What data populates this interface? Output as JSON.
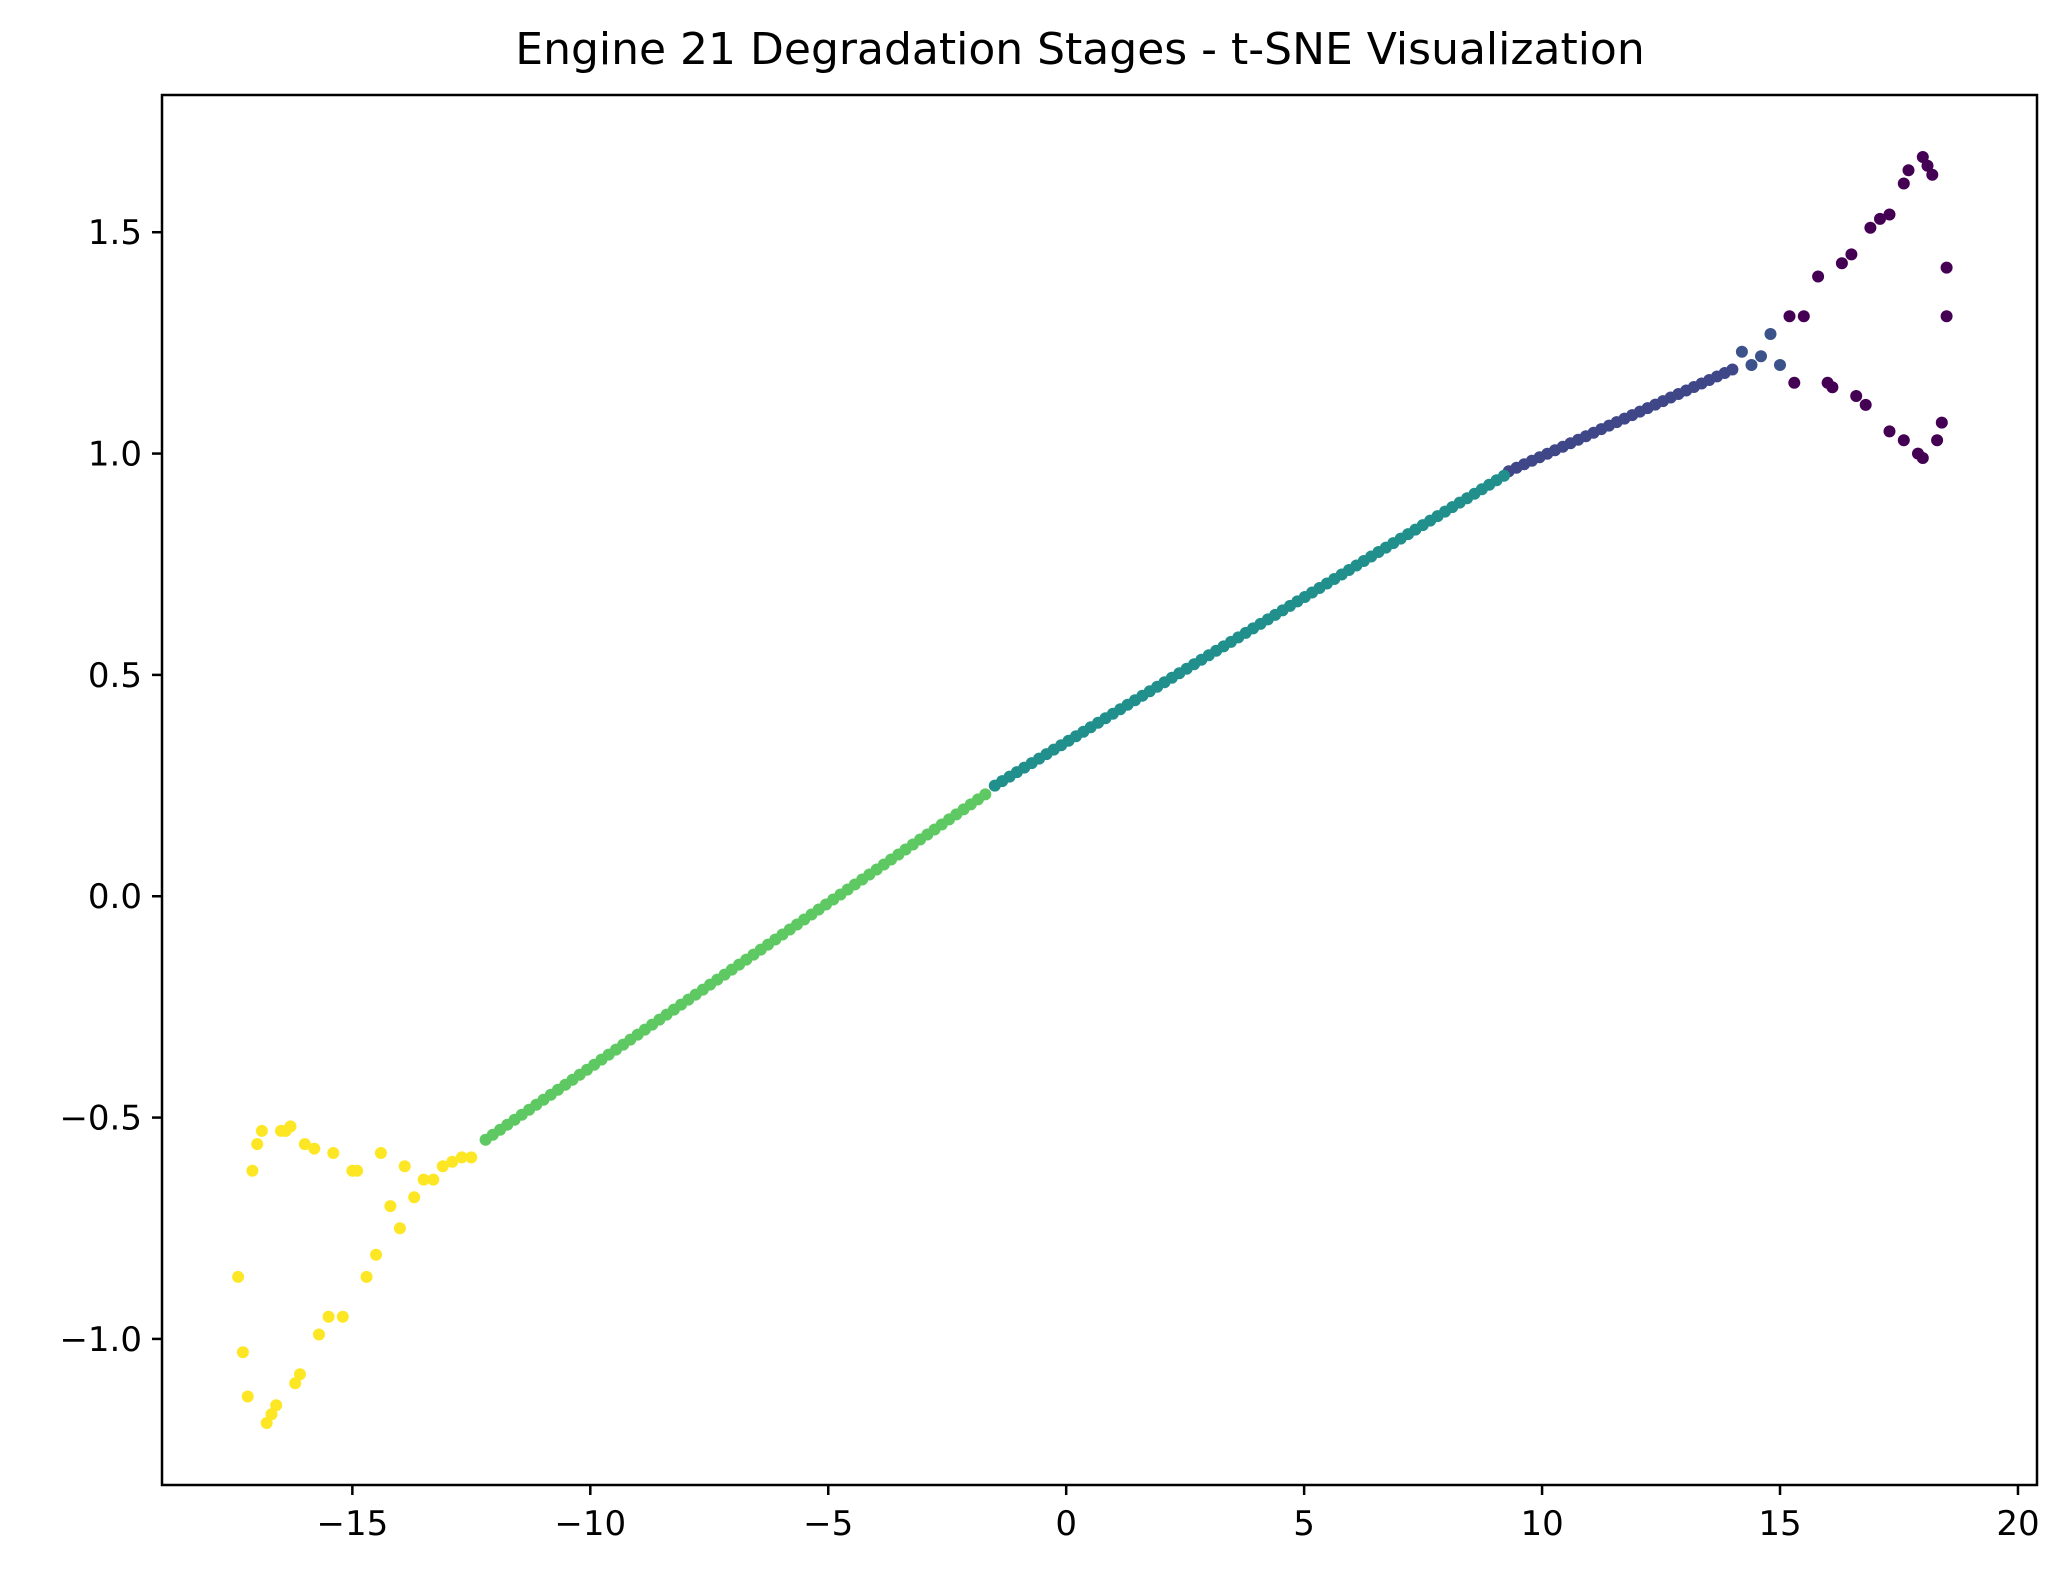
{
  "chart_data": {
    "type": "scatter",
    "title": "Engine 21 Degradation Stages - t-SNE Visualization",
    "xlabel": "",
    "ylabel": "",
    "xlim": [
      -19.0,
      20.4
    ],
    "ylim": [
      -1.33,
      1.81
    ],
    "x_ticks": [
      -15,
      -10,
      -5,
      0,
      5,
      10,
      15,
      20
    ],
    "x_tick_labels": [
      "−15",
      "−10",
      "−5",
      "0",
      "5",
      "10",
      "15",
      "20"
    ],
    "y_ticks": [
      -1.0,
      -0.5,
      0.0,
      0.5,
      1.0,
      1.5
    ],
    "y_tick_labels": [
      "−1.0",
      "−0.5",
      "0.0",
      "0.5",
      "1.0",
      "1.5"
    ],
    "grid": false,
    "colormap": "viridis",
    "series": [
      {
        "color": "#440154",
        "points": [
          [
            18.0,
            1.67
          ],
          [
            18.1,
            1.65
          ],
          [
            18.2,
            1.63
          ],
          [
            17.7,
            1.64
          ],
          [
            17.6,
            1.61
          ],
          [
            17.3,
            1.54
          ],
          [
            17.1,
            1.53
          ],
          [
            16.9,
            1.51
          ],
          [
            16.5,
            1.45
          ],
          [
            16.3,
            1.43
          ],
          [
            15.8,
            1.4
          ],
          [
            15.5,
            1.31
          ],
          [
            15.2,
            1.31
          ],
          [
            18.5,
            1.42
          ],
          [
            18.5,
            1.31
          ],
          [
            15.3,
            1.16
          ],
          [
            16.0,
            1.16
          ],
          [
            16.1,
            1.15
          ],
          [
            16.6,
            1.13
          ],
          [
            16.8,
            1.11
          ],
          [
            17.3,
            1.05
          ],
          [
            17.6,
            1.03
          ],
          [
            17.9,
            1.0
          ],
          [
            18.0,
            0.99
          ],
          [
            18.3,
            1.03
          ],
          [
            18.4,
            1.07
          ]
        ]
      },
      {
        "color": "#3b528b",
        "points": [
          [
            14.8,
            1.27
          ],
          [
            14.2,
            1.23
          ],
          [
            14.6,
            1.22
          ],
          [
            15.0,
            1.2
          ],
          [
            14.4,
            1.2
          ]
        ]
      },
      {
        "color": "#3f4788",
        "line_from": [
          9.3,
          0.96
        ],
        "line_to": [
          14.0,
          1.19
        ],
        "count": 30
      },
      {
        "color": "#21908c",
        "line_from": [
          -1.5,
          0.25
        ],
        "line_to": [
          9.2,
          0.95
        ],
        "count": 70
      },
      {
        "color": "#5ec962",
        "line_from": [
          -12.2,
          -0.55
        ],
        "line_to": [
          -1.7,
          0.23
        ],
        "count": 70
      },
      {
        "color": "#fde725",
        "points": [
          [
            -17.4,
            -0.86
          ],
          [
            -17.3,
            -1.03
          ],
          [
            -17.2,
            -1.13
          ],
          [
            -17.1,
            -0.62
          ],
          [
            -17.0,
            -0.56
          ],
          [
            -16.9,
            -0.53
          ],
          [
            -16.8,
            -1.19
          ],
          [
            -16.7,
            -1.17
          ],
          [
            -16.6,
            -1.15
          ],
          [
            -16.5,
            -0.53
          ],
          [
            -16.4,
            -0.53
          ],
          [
            -16.3,
            -0.52
          ],
          [
            -16.2,
            -1.1
          ],
          [
            -16.1,
            -1.08
          ],
          [
            -16.0,
            -0.56
          ],
          [
            -15.8,
            -0.57
          ],
          [
            -15.7,
            -0.99
          ],
          [
            -15.5,
            -0.95
          ],
          [
            -15.4,
            -0.58
          ],
          [
            -15.2,
            -0.95
          ],
          [
            -15.0,
            -0.62
          ],
          [
            -14.9,
            -0.62
          ],
          [
            -14.7,
            -0.86
          ],
          [
            -14.5,
            -0.81
          ],
          [
            -14.4,
            -0.58
          ],
          [
            -14.2,
            -0.7
          ],
          [
            -14.0,
            -0.75
          ],
          [
            -13.9,
            -0.61
          ],
          [
            -13.7,
            -0.68
          ],
          [
            -13.5,
            -0.64
          ],
          [
            -13.3,
            -0.64
          ],
          [
            -13.1,
            -0.61
          ],
          [
            -12.9,
            -0.6
          ],
          [
            -12.7,
            -0.59
          ],
          [
            -12.5,
            -0.59
          ]
        ]
      }
    ]
  }
}
